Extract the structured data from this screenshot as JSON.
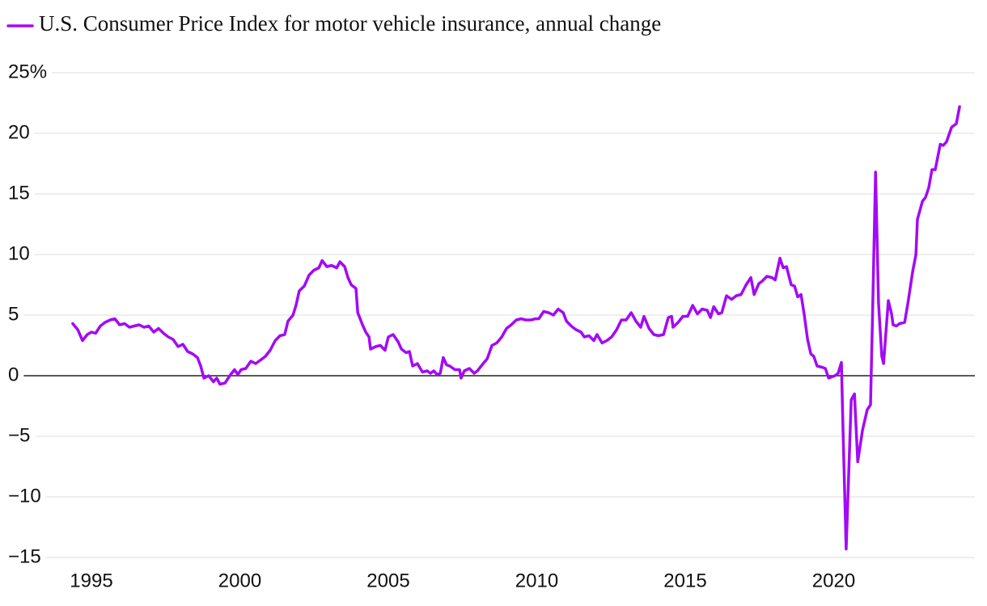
{
  "chart_data": {
    "type": "line",
    "series": [
      {
        "name": "U.S. Consumer Price Index for motor vehicle insurance, annual change",
        "color": "#a30af5",
        "x": [
          1994.37,
          1994.54,
          1994.7,
          1994.86,
          1995.0,
          1995.14,
          1995.3,
          1995.46,
          1995.63,
          1995.79,
          1995.95,
          1996.12,
          1996.28,
          1996.44,
          1996.61,
          1996.77,
          1996.93,
          1997.1,
          1997.26,
          1997.43,
          1997.59,
          1997.75,
          1997.92,
          1998.08,
          1998.24,
          1998.41,
          1998.57,
          1998.68,
          1998.79,
          1998.95,
          1999.11,
          1999.22,
          1999.33,
          1999.5,
          1999.66,
          1999.82,
          1999.93,
          2000.04,
          2000.2,
          2000.37,
          2000.53,
          2000.7,
          2000.86,
          2001.02,
          2001.19,
          2001.35,
          2001.51,
          2001.62,
          2001.79,
          2001.89,
          2002.0,
          2002.17,
          2002.33,
          2002.49,
          2002.66,
          2002.77,
          2002.93,
          2003.09,
          2003.26,
          2003.37,
          2003.53,
          2003.64,
          2003.75,
          2003.91,
          2003.97,
          2004.13,
          2004.24,
          2004.35,
          2004.4,
          2004.57,
          2004.73,
          2004.89,
          2005.0,
          2005.16,
          2005.33,
          2005.44,
          2005.6,
          2005.71,
          2005.82,
          2005.98,
          2006.15,
          2006.31,
          2006.42,
          2006.53,
          2006.64,
          2006.75,
          2006.85,
          2006.96,
          2007.07,
          2007.24,
          2007.4,
          2007.45,
          2007.56,
          2007.73,
          2007.89,
          2008.0,
          2008.16,
          2008.33,
          2008.49,
          2008.65,
          2008.82,
          2008.98,
          2009.14,
          2009.31,
          2009.47,
          2009.63,
          2009.8,
          2009.96,
          2010.07,
          2010.23,
          2010.4,
          2010.56,
          2010.72,
          2010.89,
          2011.0,
          2011.16,
          2011.32,
          2011.49,
          2011.6,
          2011.76,
          2011.92,
          2012.03,
          2012.2,
          2012.36,
          2012.52,
          2012.69,
          2012.85,
          2013.01,
          2013.18,
          2013.34,
          2013.5,
          2013.61,
          2013.78,
          2013.94,
          2014.1,
          2014.27,
          2014.43,
          2014.54,
          2014.59,
          2014.76,
          2014.92,
          2015.08,
          2015.25,
          2015.41,
          2015.57,
          2015.74,
          2015.85,
          2015.96,
          2016.12,
          2016.23,
          2016.39,
          2016.56,
          2016.72,
          2016.88,
          2017.05,
          2017.21,
          2017.32,
          2017.48,
          2017.59,
          2017.75,
          2017.92,
          2018.03,
          2018.19,
          2018.3,
          2018.41,
          2018.57,
          2018.68,
          2018.79,
          2018.9,
          2019.01,
          2019.12,
          2019.23,
          2019.33,
          2019.44,
          2019.61,
          2019.72,
          2019.83,
          2019.93,
          2020.04,
          2020.15,
          2020.26,
          2020.32,
          2020.42,
          2020.59,
          2020.7,
          2020.81,
          2020.97,
          2021.13,
          2021.24,
          2021.3,
          2021.41,
          2021.51,
          2021.62,
          2021.68,
          2021.84,
          2021.95,
          2022.0,
          2022.11,
          2022.22,
          2022.39,
          2022.5,
          2022.66,
          2022.77,
          2022.82,
          2022.99,
          2023.09,
          2023.2,
          2023.31,
          2023.42,
          2023.59,
          2023.69,
          2023.8,
          2023.97,
          2024.13,
          2024.24
        ],
        "values": [
          4.3,
          3.8,
          2.9,
          3.4,
          3.6,
          3.5,
          4.1,
          4.4,
          4.6,
          4.7,
          4.2,
          4.3,
          4.0,
          4.1,
          4.2,
          4.0,
          4.1,
          3.6,
          3.9,
          3.5,
          3.2,
          3.0,
          2.4,
          2.6,
          2.0,
          1.8,
          1.5,
          0.8,
          -0.2,
          0.0,
          -0.5,
          -0.2,
          -0.7,
          -0.6,
          0.0,
          0.5,
          0.1,
          0.5,
          0.6,
          1.2,
          1.0,
          1.3,
          1.6,
          2.1,
          2.9,
          3.3,
          3.4,
          4.5,
          5.0,
          5.8,
          7.0,
          7.4,
          8.3,
          8.7,
          8.9,
          9.5,
          9.0,
          9.1,
          8.9,
          9.4,
          9.0,
          8.1,
          7.5,
          7.2,
          5.2,
          4.2,
          3.6,
          3.2,
          2.2,
          2.4,
          2.5,
          2.1,
          3.2,
          3.4,
          2.8,
          2.2,
          1.9,
          2.0,
          0.8,
          1.0,
          0.3,
          0.4,
          0.2,
          0.4,
          0.1,
          0.2,
          1.5,
          0.9,
          0.8,
          0.5,
          0.5,
          -0.2,
          0.4,
          0.6,
          0.2,
          0.4,
          0.9,
          1.4,
          2.5,
          2.7,
          3.2,
          3.9,
          4.2,
          4.6,
          4.7,
          4.6,
          4.6,
          4.7,
          4.7,
          5.3,
          5.2,
          5.0,
          5.5,
          5.2,
          4.5,
          4.1,
          3.8,
          3.6,
          3.2,
          3.3,
          2.9,
          3.4,
          2.7,
          2.9,
          3.2,
          3.8,
          4.6,
          4.6,
          5.2,
          4.5,
          4.0,
          4.9,
          3.9,
          3.4,
          3.3,
          3.4,
          4.8,
          4.9,
          4.0,
          4.4,
          4.9,
          4.9,
          5.8,
          5.1,
          5.5,
          5.4,
          4.8,
          5.7,
          5.1,
          5.2,
          6.6,
          6.3,
          6.6,
          6.7,
          7.5,
          8.1,
          6.7,
          7.6,
          7.8,
          8.2,
          8.1,
          7.9,
          9.7,
          8.9,
          9.0,
          7.5,
          7.4,
          6.5,
          6.7,
          5.0,
          3.0,
          1.8,
          1.6,
          0.8,
          0.7,
          0.6,
          -0.2,
          -0.1,
          0.0,
          0.2,
          1.1,
          -5.0,
          -14.3,
          -2.0,
          -1.5,
          -7.1,
          -4.5,
          -2.8,
          -2.4,
          4.0,
          16.8,
          6.0,
          1.6,
          1.0,
          6.2,
          5.1,
          4.2,
          4.1,
          4.3,
          4.4,
          6.0,
          8.6,
          10.0,
          12.9,
          14.4,
          14.7,
          15.5,
          17.0,
          17.0,
          19.1,
          19.0,
          19.3,
          20.5,
          20.8,
          22.2
        ]
      }
    ],
    "xlim": [
      1994,
      2024.5
    ],
    "xticks": [
      1995,
      2000,
      2005,
      2010,
      2015,
      2020
    ],
    "ylim": [
      -15,
      25
    ],
    "yticks": [
      {
        "value": -15,
        "label": "−15"
      },
      {
        "value": -10,
        "label": "−10"
      },
      {
        "value": -5,
        "label": "−5"
      },
      0,
      5,
      10,
      15,
      20,
      {
        "value": 25,
        "label": "25%"
      }
    ],
    "grid": true,
    "zero_line": true,
    "legend": "top-left"
  }
}
